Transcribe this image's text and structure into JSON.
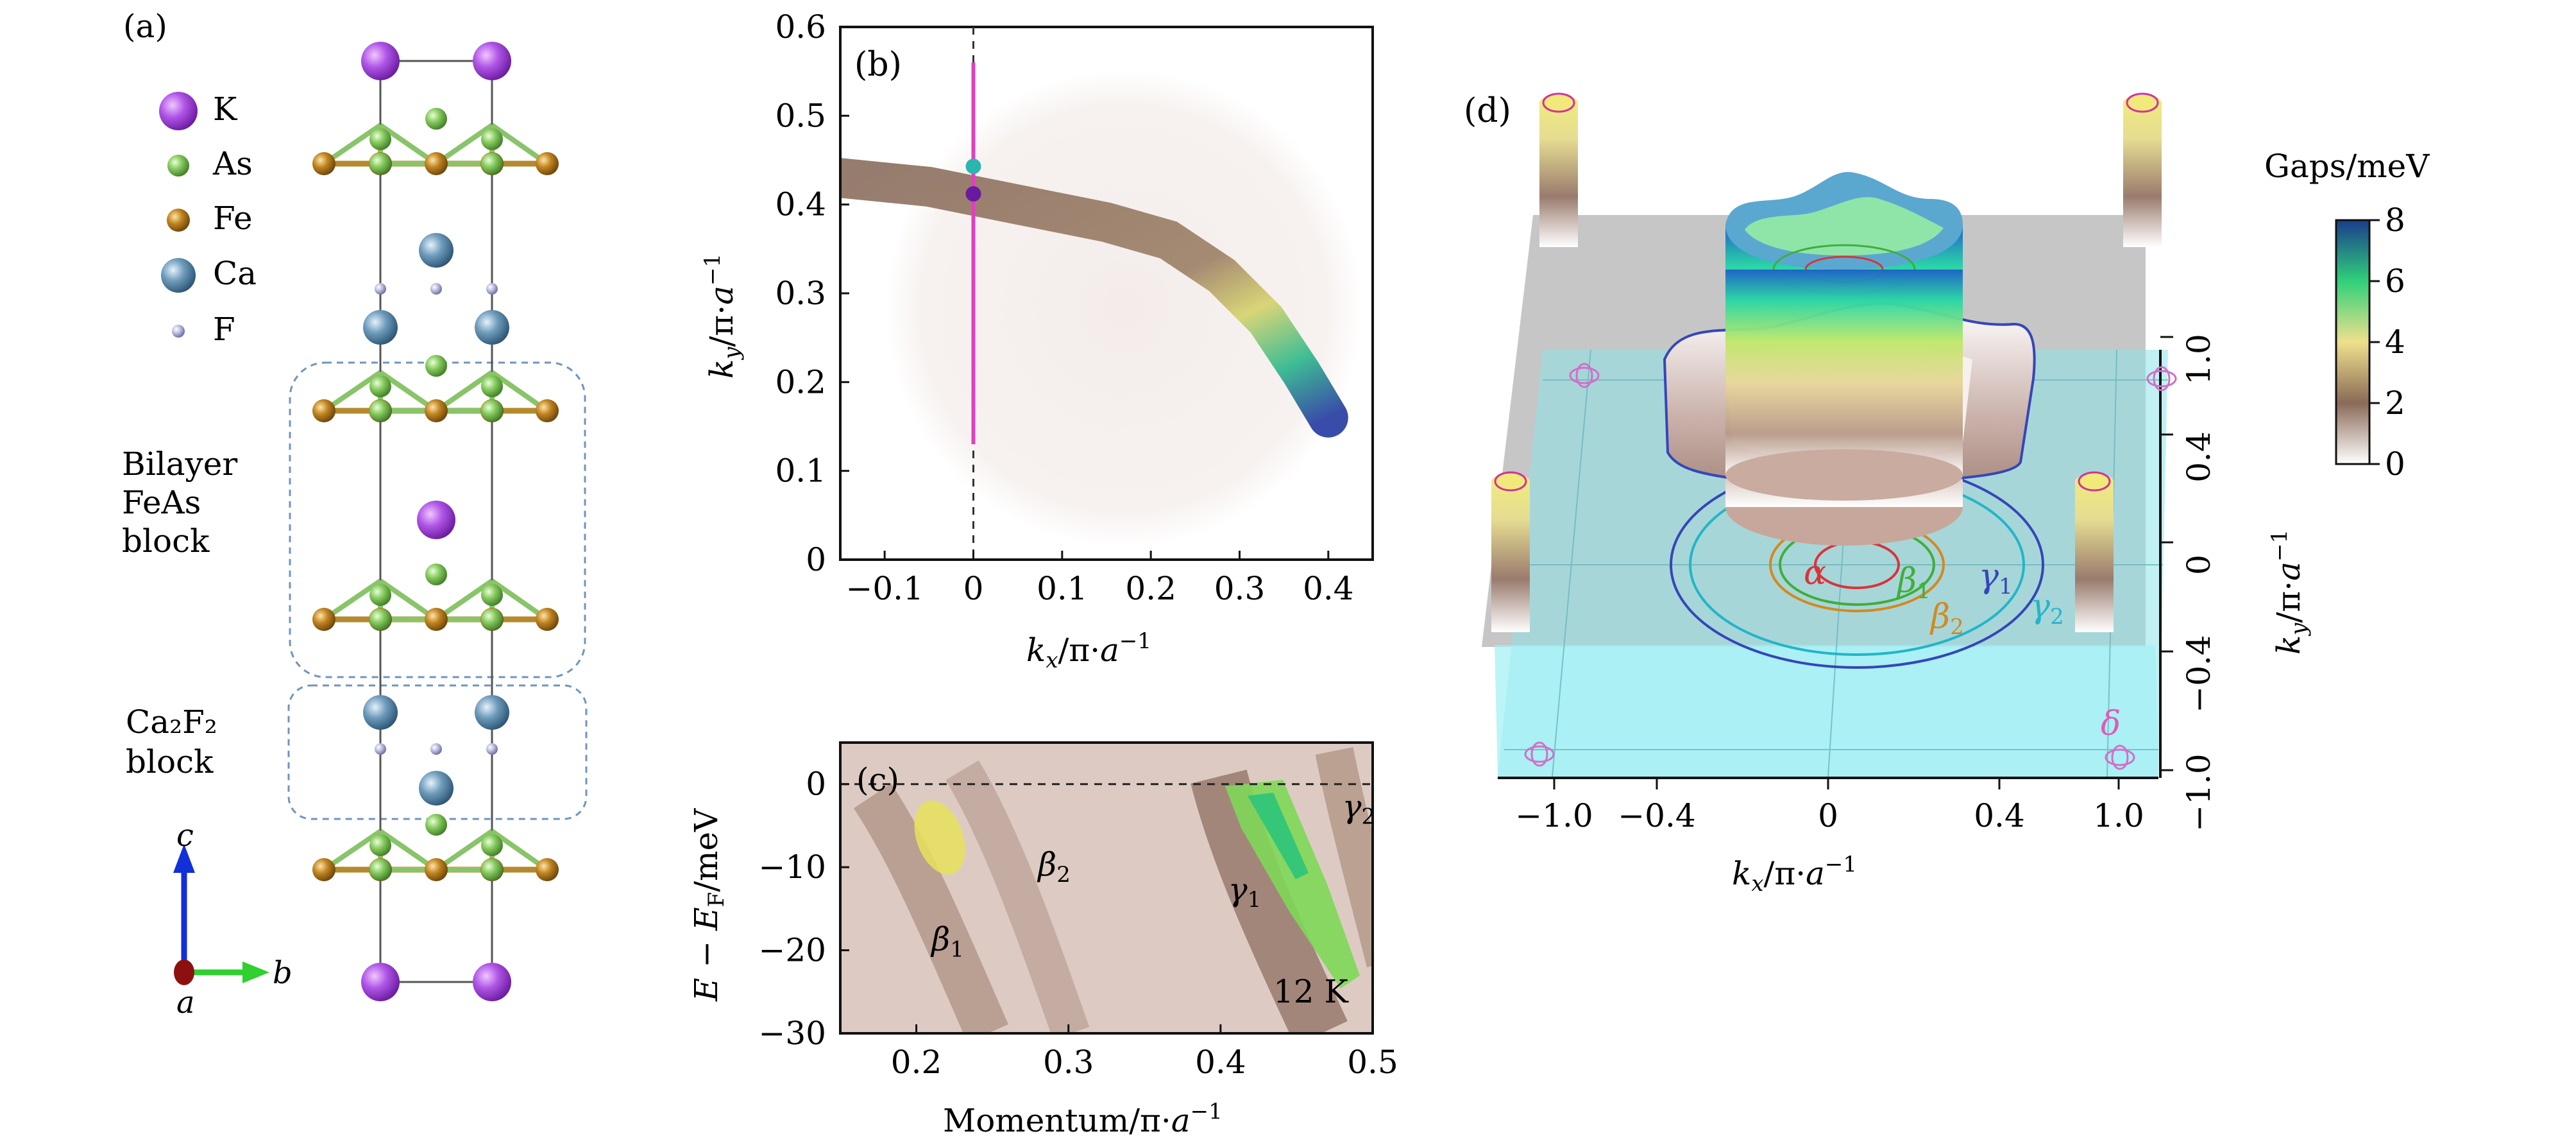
{
  "panels": {
    "a": {
      "label": "(a)",
      "legend": [
        {
          "symbol": "K",
          "color": "#9b3fd3"
        },
        {
          "symbol": "As",
          "color": "#7cc15a"
        },
        {
          "symbol": "Fe",
          "color": "#b77a1c"
        },
        {
          "symbol": "Ca",
          "color": "#5f8fae"
        },
        {
          "symbol": "F",
          "color": "#a3a3d4"
        }
      ],
      "blocks": [
        {
          "lines": [
            "Bilayer",
            "FeAs",
            "block"
          ]
        },
        {
          "lines": [
            "Ca₂F₂",
            "block"
          ]
        }
      ],
      "axes_labels": {
        "c": "c",
        "a": "a",
        "b": "b"
      }
    },
    "b": {
      "label": "(b)"
    },
    "c": {
      "label": "(c)",
      "temperature": "12 K"
    },
    "d": {
      "label": "(d)"
    }
  },
  "chart_data": [
    {
      "panel": "b",
      "type": "heatmap",
      "xlabel": "kx/π·a⁻¹",
      "ylabel": "ky/π·a⁻¹",
      "xlim": [
        -0.15,
        0.45
      ],
      "ylim": [
        0,
        0.6
      ],
      "xticks": [
        "−0.1",
        "0",
        "0.1",
        "0.2",
        "0.3",
        "0.4"
      ],
      "xtick_values": [
        -0.1,
        0,
        0.1,
        0.2,
        0.3,
        0.4
      ],
      "yticks": [
        "0",
        "0.1",
        "0.2",
        "0.3",
        "0.4",
        "0.5",
        "0.6"
      ],
      "ytick_values": [
        0,
        0.1,
        0.2,
        0.3,
        0.4,
        0.5,
        0.6
      ],
      "cut_line": {
        "x": 0,
        "y_range": [
          0.13,
          0.56
        ],
        "color": "#e040c0"
      },
      "points": [
        {
          "x": 0,
          "y": 0.443,
          "color": "#2ab6b0"
        },
        {
          "x": 0,
          "y": 0.412,
          "color": "#6a1aa0"
        }
      ],
      "band_path": [
        [
          -0.15,
          0.43
        ],
        [
          -0.05,
          0.42
        ],
        [
          0.05,
          0.4
        ],
        [
          0.15,
          0.38
        ],
        [
          0.22,
          0.36
        ],
        [
          0.28,
          0.32
        ],
        [
          0.33,
          0.27
        ],
        [
          0.37,
          0.21
        ],
        [
          0.4,
          0.16
        ]
      ],
      "dashed_zero": true
    },
    {
      "panel": "c",
      "type": "heatmap",
      "xlabel": "Momentum/π·a⁻¹",
      "ylabel": "E − EF/meV",
      "xlim": [
        0.15,
        0.5
      ],
      "ylim": [
        -30,
        5
      ],
      "xticks": [
        "0.2",
        "0.3",
        "0.4",
        "0.5"
      ],
      "xtick_values": [
        0.2,
        0.3,
        0.4,
        0.5
      ],
      "yticks": [
        "−30",
        "−20",
        "−10",
        "0"
      ],
      "ytick_values": [
        -30,
        -20,
        -10,
        0
      ],
      "band_labels": [
        {
          "text": "β1",
          "x": 0.21,
          "y": -20
        },
        {
          "text": "β2",
          "x": 0.28,
          "y": -11
        },
        {
          "text": "γ1",
          "x": 0.405,
          "y": -14
        },
        {
          "text": "γ2",
          "x": 0.48,
          "y": -4
        }
      ],
      "fermi_level": 0
    },
    {
      "panel": "d",
      "type": "surface",
      "xlabel": "kx/π·a⁻¹",
      "ylabel": "ky/π·a⁻¹",
      "xticks": [
        "−1.0",
        "−0.4",
        "0",
        "0.4",
        "1.0"
      ],
      "yticks": [
        "−1.0",
        "−0.4",
        "0",
        "0.4",
        "1.0"
      ],
      "colorbar": {
        "title": "Gaps/meV",
        "ticks": [
          "0",
          "2",
          "4",
          "6",
          "8"
        ],
        "range": [
          0,
          8
        ]
      },
      "fermi_surfaces": [
        {
          "name": "α",
          "color": "#d8343a"
        },
        {
          "name": "β1",
          "color": "#3fae3a"
        },
        {
          "name": "β2",
          "color": "#d28a1e"
        },
        {
          "name": "γ1",
          "color": "#3546b8"
        },
        {
          "name": "γ2",
          "color": "#23b5c8"
        },
        {
          "name": "δ",
          "color": "#e05ab8"
        }
      ]
    }
  ]
}
